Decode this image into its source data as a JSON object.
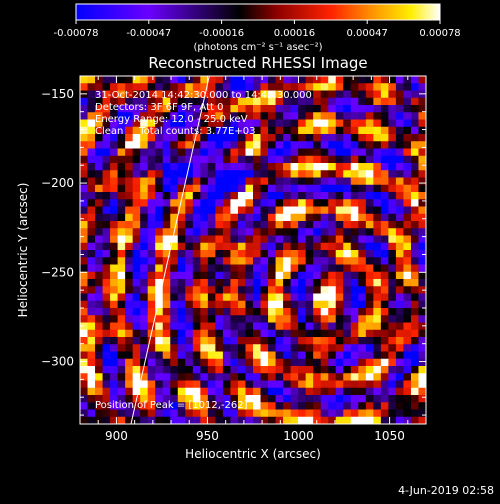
{
  "colorbar": {
    "ticks": [
      "-0.00078",
      "-0.00047",
      "-0.00016",
      "0.00016",
      "0.00047",
      "0.00078"
    ],
    "unit": "(photons cm⁻² s⁻¹ asec⁻²)",
    "colormap": [
      "#0000ff",
      "#6a00ff",
      "#000000",
      "#8b0000",
      "#ff2200",
      "#ff9900",
      "#ffee00",
      "#ffffff"
    ]
  },
  "chart_data": {
    "type": "heatmap",
    "title": "Reconstructed RHESSI Image",
    "xlabel": "Heliocentric X (arcsec)",
    "ylabel": "Heliocentric Y (arcsec)",
    "xlim": [
      880,
      1070
    ],
    "ylim": [
      -335,
      -140
    ],
    "xticks": [
      900,
      950,
      1000,
      1050
    ],
    "yticks": [
      -150,
      -200,
      -250,
      -300
    ],
    "peak_location": [
      1012,
      -262
    ],
    "annotations": [
      "31-Oct-2014 14:42:30.000 to 14:48:30.000",
      "Detectors: 3F 6F 9F, Att 0",
      "Energy Range: 12.0 - 25.0 keV",
      "Clean     Total counts: 3.77E+03"
    ],
    "peak_label": "Position of Peak = [1012,-262]",
    "limb_line": [
      [
        908,
        -335
      ],
      [
        951,
        -140
      ]
    ]
  },
  "footer": {
    "date": "4-Jun-2019 02:58"
  }
}
